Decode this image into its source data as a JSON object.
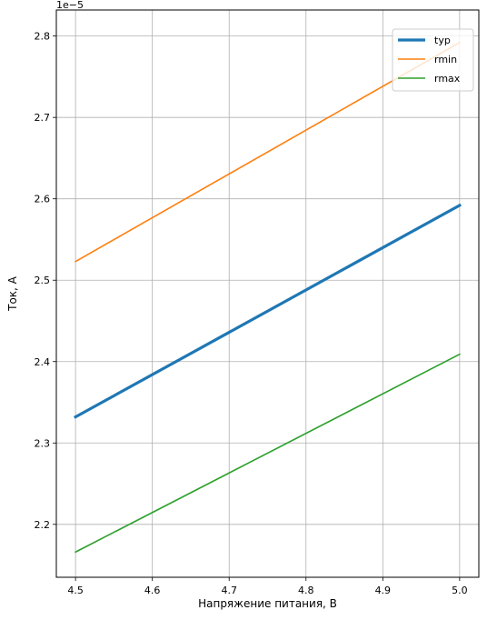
{
  "chart_data": {
    "type": "line",
    "title": "",
    "xlabel": "Напряжение питания, В",
    "ylabel": "Ток, А",
    "offset_label": "1e−5",
    "xlim": [
      4.475,
      5.025
    ],
    "ylim": [
      2.135e-05,
      2.832e-05
    ],
    "x_ticks": [
      4.5,
      4.6,
      4.7,
      4.8,
      4.9,
      5.0
    ],
    "x_tick_labels": [
      "4.5",
      "4.6",
      "4.7",
      "4.8",
      "4.9",
      "5.0"
    ],
    "y_ticks": [
      2.2e-05,
      2.3e-05,
      2.4e-05,
      2.5e-05,
      2.6e-05,
      2.7e-05,
      2.8e-05
    ],
    "y_tick_labels": [
      "2.2",
      "2.3",
      "2.4",
      "2.5",
      "2.6",
      "2.7",
      "2.8"
    ],
    "grid": true,
    "legend_position": "top-right",
    "series": [
      {
        "name": "typ",
        "color": "#1f77b4",
        "linewidth": "thick",
        "x": [
          4.5,
          5.0
        ],
        "values": [
          2.332e-05,
          2.592e-05
        ]
      },
      {
        "name": "rmin",
        "color": "#ff7f0e",
        "linewidth": "normal",
        "x": [
          4.5,
          5.0
        ],
        "values": [
          2.523e-05,
          2.792e-05
        ]
      },
      {
        "name": "rmax",
        "color": "#2ca02c",
        "linewidth": "normal",
        "x": [
          4.5,
          5.0
        ],
        "values": [
          2.166e-05,
          2.409e-05
        ]
      }
    ]
  }
}
